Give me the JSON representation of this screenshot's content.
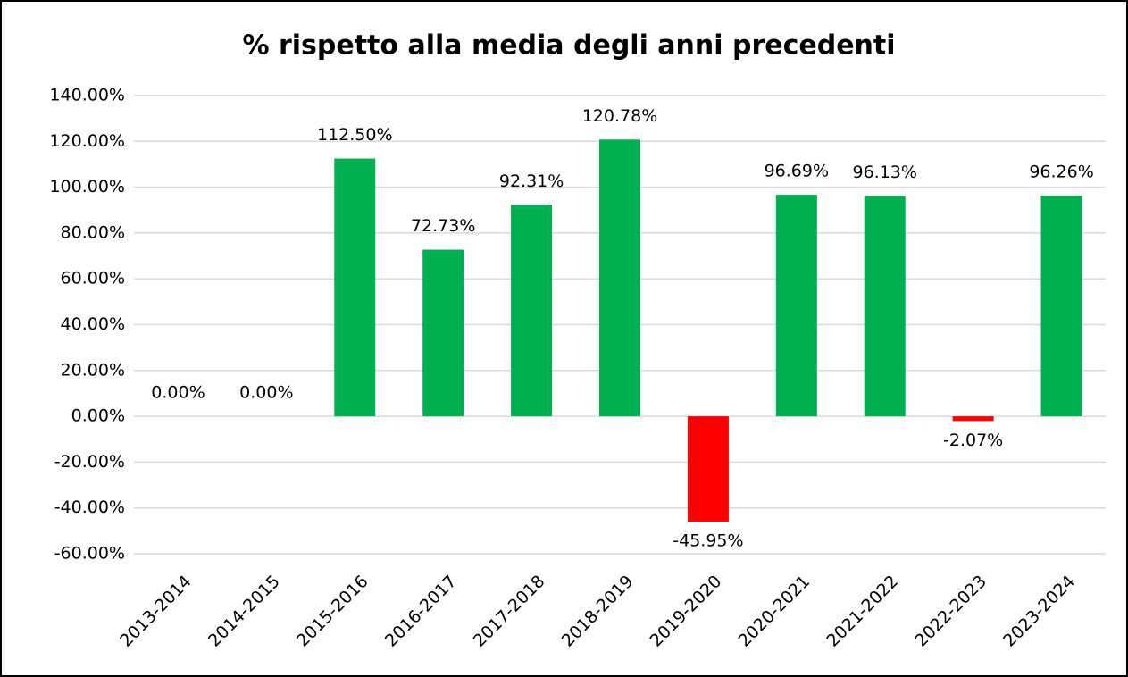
{
  "chart_data": {
    "type": "bar",
    "title": "% rispetto alla media degli anni precedenti",
    "categories": [
      "2013-2014",
      "2014-2015",
      "2015-2016",
      "2016-2017",
      "2017-2018",
      "2018-2019",
      "2019-2020",
      "2020-2021",
      "2021-2022",
      "2022-2023",
      "2023-2024"
    ],
    "values": [
      0,
      0,
      112.5,
      72.73,
      92.31,
      120.78,
      -45.95,
      96.69,
      96.13,
      -2.07,
      96.26
    ],
    "value_labels": [
      "0.00%",
      "0.00%",
      "112.50%",
      "72.73%",
      "92.31%",
      "120.78%",
      "-45.95%",
      "96.69%",
      "96.13%",
      "-2.07%",
      "96.26%"
    ],
    "color": "#00b050",
    "negative_color": "#ff0000",
    "ylim": [
      -60,
      140
    ],
    "yticks": [
      {
        "value": -60,
        "label": "-60.00%"
      },
      {
        "value": -40,
        "label": "-40.00%"
      },
      {
        "value": -20,
        "label": "-20.00%"
      },
      {
        "value": 0,
        "label": "0.00%"
      },
      {
        "value": 20,
        "label": "20.00%"
      },
      {
        "value": 40,
        "label": "40.00%"
      },
      {
        "value": 60,
        "label": "60.00%"
      },
      {
        "value": 80,
        "label": "80.00%"
      },
      {
        "value": 100,
        "label": "100.00%"
      },
      {
        "value": 120,
        "label": "120.00%"
      },
      {
        "value": 140,
        "label": "140.00%"
      }
    ],
    "grid": true
  }
}
